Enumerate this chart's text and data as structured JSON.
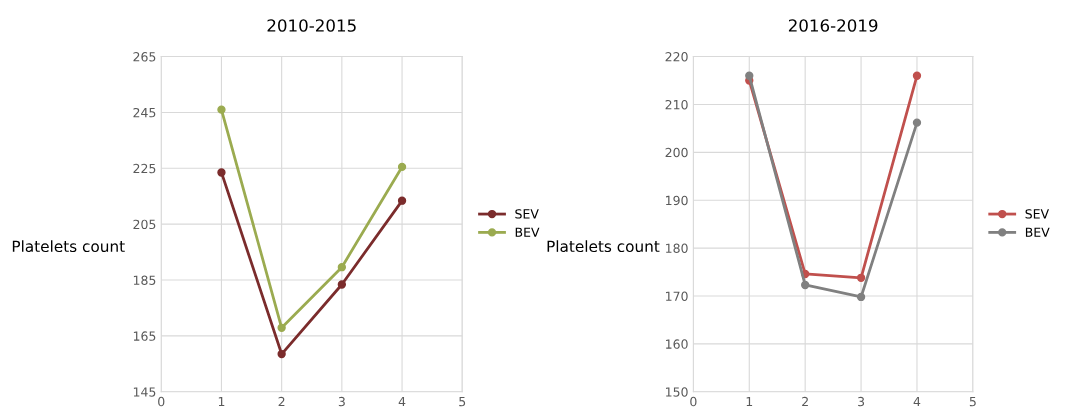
{
  "chart_data": [
    {
      "type": "line",
      "title": "2010-2015",
      "ylabel": "Platelets count",
      "x": [
        1,
        2,
        3,
        4
      ],
      "xlim": [
        0,
        5
      ],
      "xticks": [
        0,
        1,
        2,
        3,
        4,
        5
      ],
      "ylim": [
        145,
        265
      ],
      "yticks": [
        145,
        165,
        185,
        205,
        225,
        245,
        265
      ],
      "grid": true,
      "legend": "right",
      "marker": "circle",
      "series": [
        {
          "name": "SEV",
          "color": "#7b2c2c",
          "values": [
            223.5,
            158.5,
            183.4,
            213.4
          ]
        },
        {
          "name": "BEV",
          "color": "#9bab50",
          "values": [
            246,
            167.9,
            189.6,
            225.5
          ]
        }
      ]
    },
    {
      "type": "line",
      "title": "2016-2019",
      "ylabel": "Platelets count",
      "x": [
        1,
        2,
        3,
        4
      ],
      "xlim": [
        0,
        5
      ],
      "xticks": [
        0,
        1,
        2,
        3,
        4,
        5
      ],
      "ylim": [
        150,
        220
      ],
      "yticks": [
        150,
        160,
        170,
        180,
        190,
        200,
        210,
        220
      ],
      "grid": true,
      "legend": "right",
      "marker": "circle",
      "series": [
        {
          "name": "SEV",
          "color": "#c0504d",
          "values": [
            215,
            174.6,
            173.8,
            216
          ]
        },
        {
          "name": "BEV",
          "color": "#808080",
          "values": [
            216,
            172.3,
            169.8,
            206.2
          ]
        }
      ]
    }
  ]
}
